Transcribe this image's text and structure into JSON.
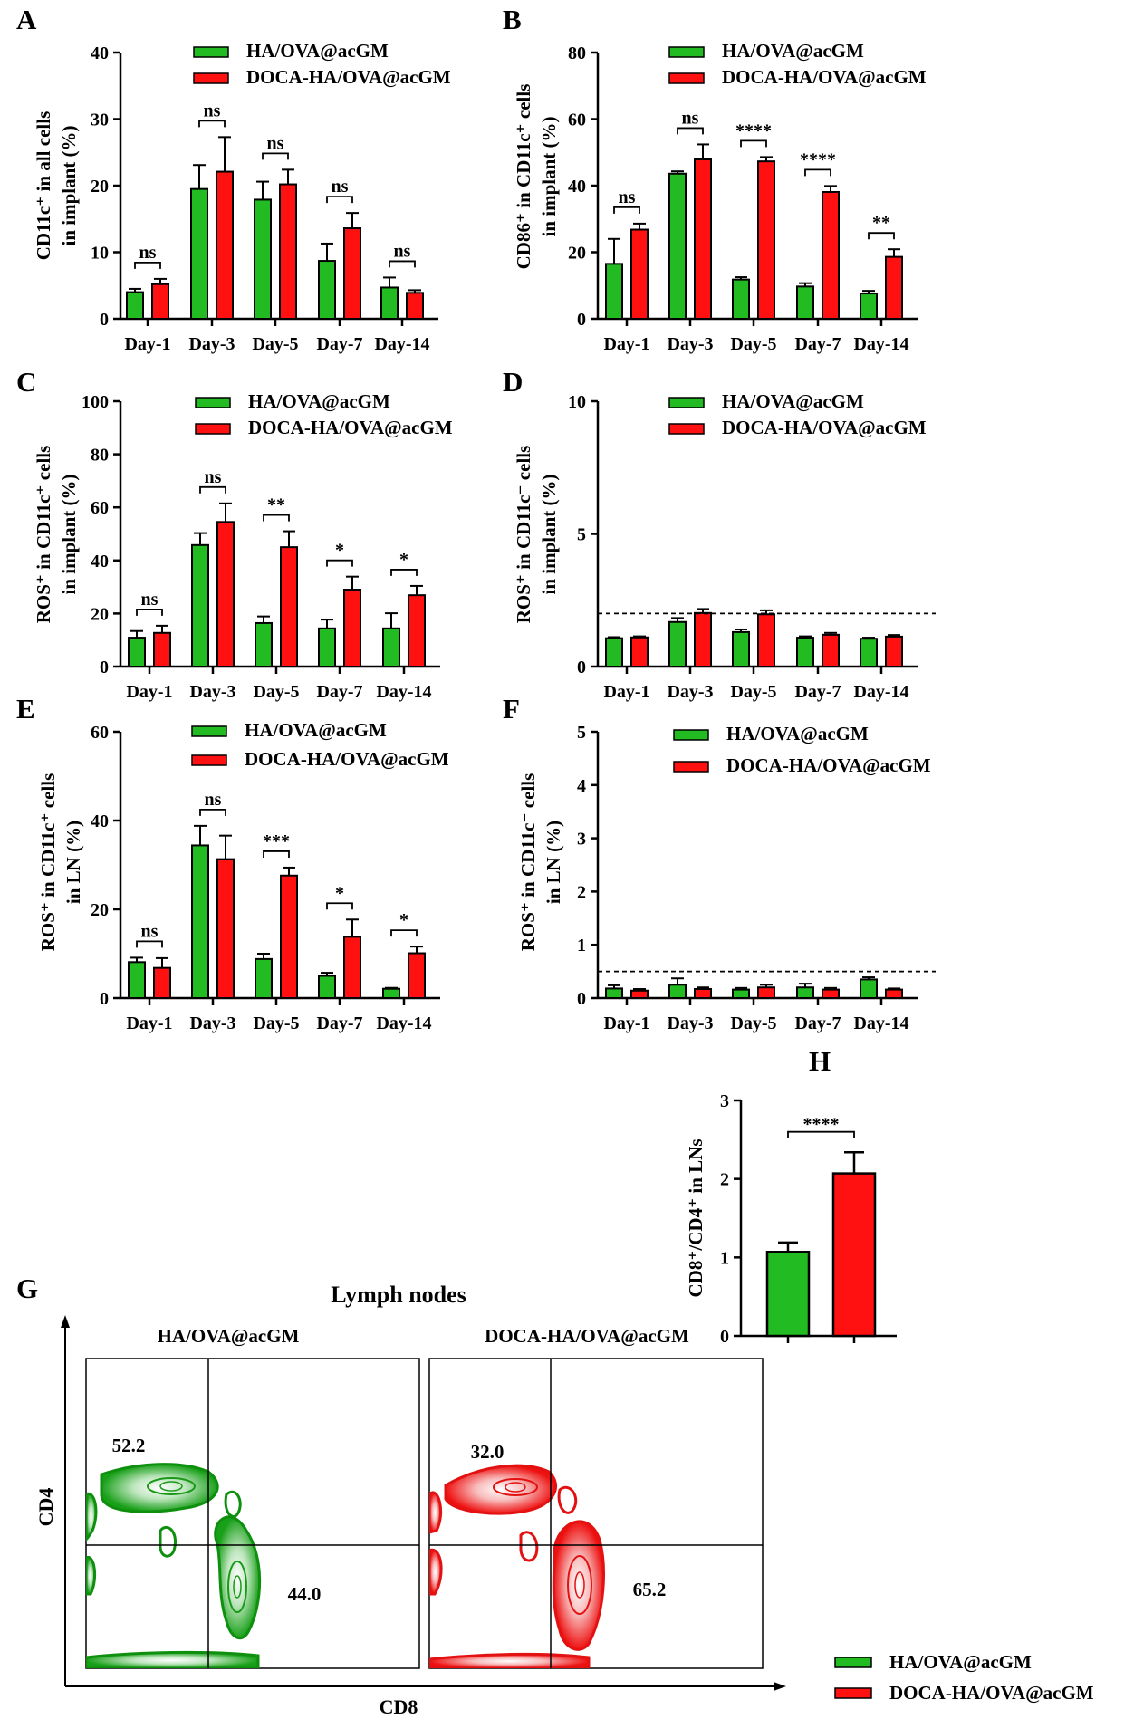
{
  "colors": {
    "green": "#22bb22",
    "red": "#ff1111",
    "axis": "#000000"
  },
  "legend": {
    "series1": "HA/OVA@acGM",
    "series2": "DOCA-HA/OVA@acGM"
  },
  "chart_data": [
    {
      "panel": "A",
      "type": "bar",
      "categories": [
        "Day-1",
        "Day-3",
        "Day-5",
        "Day-7",
        "Day-14"
      ],
      "ylabel1": "CD11c⁺ in all cells",
      "ylabel2": "in implant (%)",
      "ylim": [
        0,
        40
      ],
      "yticks": [
        0,
        10,
        20,
        30,
        40
      ],
      "series": [
        {
          "name": "HA/OVA@acGM",
          "values": [
            4.0,
            19.5,
            17.9,
            8.7,
            4.7
          ],
          "errors": [
            0.5,
            3.6,
            2.7,
            2.6,
            1.5
          ]
        },
        {
          "name": "DOCA-HA/OVA@acGM",
          "values": [
            5.2,
            22.1,
            20.2,
            13.6,
            3.9
          ],
          "errors": [
            0.8,
            5.2,
            2.2,
            2.3,
            0.4
          ]
        }
      ],
      "significance": [
        "ns",
        "ns",
        "ns",
        "ns",
        "ns"
      ]
    },
    {
      "panel": "B",
      "type": "bar",
      "categories": [
        "Day-1",
        "Day-3",
        "Day-5",
        "Day-7",
        "Day-14"
      ],
      "ylabel1": "CD86⁺ in CD11c⁺ cells",
      "ylabel2": "in implant (%)",
      "ylim": [
        0,
        80
      ],
      "yticks": [
        0,
        20,
        40,
        60,
        80
      ],
      "series": [
        {
          "name": "HA/OVA@acGM",
          "values": [
            16.5,
            43.6,
            11.8,
            9.7,
            7.6
          ],
          "errors": [
            7.5,
            0.7,
            0.7,
            1.0,
            0.8
          ]
        },
        {
          "name": "DOCA-HA/OVA@acGM",
          "values": [
            26.8,
            47.9,
            47.3,
            38.1,
            18.6
          ],
          "errors": [
            1.8,
            4.5,
            1.3,
            1.8,
            2.3
          ]
        }
      ],
      "significance": [
        "ns",
        "ns",
        "****",
        "****",
        "**"
      ]
    },
    {
      "panel": "C",
      "type": "bar",
      "categories": [
        "Day-1",
        "Day-3",
        "Day-5",
        "Day-7",
        "Day-14"
      ],
      "ylabel1": "ROS⁺ in CD11c⁺ cells",
      "ylabel2": "in implant (%)",
      "ylim": [
        0,
        100
      ],
      "yticks": [
        0,
        20,
        40,
        60,
        80,
        100
      ],
      "series": [
        {
          "name": "HA/OVA@acGM",
          "values": [
            10.9,
            45.8,
            16.4,
            14.4,
            14.4
          ],
          "errors": [
            2.5,
            4.5,
            2.5,
            3.3,
            5.7
          ]
        },
        {
          "name": "DOCA-HA/OVA@acGM",
          "values": [
            12.7,
            54.5,
            45.0,
            29.0,
            26.9
          ],
          "errors": [
            2.7,
            7.0,
            6.0,
            4.9,
            3.5
          ]
        }
      ],
      "significance": [
        "ns",
        "ns",
        "**",
        "*",
        "*"
      ]
    },
    {
      "panel": "D",
      "type": "bar",
      "categories": [
        "Day-1",
        "Day-3",
        "Day-5",
        "Day-7",
        "Day-14"
      ],
      "ylabel1": "ROS⁺ in CD11c⁻ cells",
      "ylabel2": "in implant (%)",
      "ylim": [
        0,
        10
      ],
      "yticks": [
        0,
        5,
        10
      ],
      "dashed_line": 2,
      "series": [
        {
          "name": "HA/OVA@acGM",
          "values": [
            1.07,
            1.68,
            1.3,
            1.09,
            1.05
          ],
          "errors": [
            0.04,
            0.15,
            0.1,
            0.05,
            0.04
          ]
        },
        {
          "name": "DOCA-HA/OVA@acGM",
          "values": [
            1.1,
            2.02,
            1.97,
            1.2,
            1.13
          ],
          "errors": [
            0.04,
            0.15,
            0.15,
            0.07,
            0.06
          ]
        }
      ],
      "significance": []
    },
    {
      "panel": "E",
      "type": "bar",
      "categories": [
        "Day-1",
        "Day-3",
        "Day-5",
        "Day-7",
        "Day-14"
      ],
      "ylabel1": "ROS⁺ in CD11c⁺ cells",
      "ylabel2": "in LN (%)",
      "ylim": [
        0,
        60
      ],
      "yticks": [
        0,
        20,
        40,
        60
      ],
      "series": [
        {
          "name": "HA/OVA@acGM",
          "values": [
            8.1,
            34.4,
            8.8,
            5.0,
            2.1
          ],
          "errors": [
            1.0,
            4.4,
            1.2,
            0.7,
            0.2
          ]
        },
        {
          "name": "DOCA-HA/OVA@acGM",
          "values": [
            6.8,
            31.3,
            27.6,
            13.8,
            10.1
          ],
          "errors": [
            2.2,
            5.3,
            1.8,
            3.9,
            1.5
          ]
        }
      ],
      "significance": [
        "ns",
        "ns",
        "***",
        "*",
        "*"
      ]
    },
    {
      "panel": "F",
      "type": "bar",
      "categories": [
        "Day-1",
        "Day-3",
        "Day-5",
        "Day-7",
        "Day-14"
      ],
      "ylabel1": "ROS⁺ in CD11c⁻ cells",
      "ylabel2": "in LN (%)",
      "ylim": [
        0,
        5
      ],
      "yticks": [
        0,
        1,
        2,
        3,
        4,
        5
      ],
      "dashed_line": 0.5,
      "series": [
        {
          "name": "HA/OVA@acGM",
          "values": [
            0.18,
            0.25,
            0.16,
            0.2,
            0.35
          ],
          "errors": [
            0.06,
            0.12,
            0.03,
            0.07,
            0.04
          ]
        },
        {
          "name": "DOCA-HA/OVA@acGM",
          "values": [
            0.14,
            0.17,
            0.2,
            0.16,
            0.16
          ],
          "errors": [
            0.03,
            0.03,
            0.05,
            0.03,
            0.02
          ]
        }
      ],
      "significance": []
    },
    {
      "panel": "H",
      "type": "bar",
      "categories": [
        "HA/OVA@acGM",
        "DOCA-HA/OVA@acGM"
      ],
      "ylabel1": "CD8⁺/CD4⁺ in LNs",
      "ylim": [
        0,
        3
      ],
      "yticks": [
        0,
        1,
        2,
        3
      ],
      "values": [
        1.07,
        2.07
      ],
      "errors": [
        0.12,
        0.27
      ],
      "significance": [
        "****"
      ]
    }
  ],
  "panel_g": {
    "label": "G",
    "title": "Lymph nodes",
    "xlabel": "CD8",
    "ylabel": "CD4",
    "plots": [
      {
        "title": "HA/OVA@acGM",
        "cd4": "52.2",
        "cd8": "44.0"
      },
      {
        "title": "DOCA-HA/OVA@acGM",
        "cd4": "32.0",
        "cd8": "65.2"
      }
    ]
  }
}
